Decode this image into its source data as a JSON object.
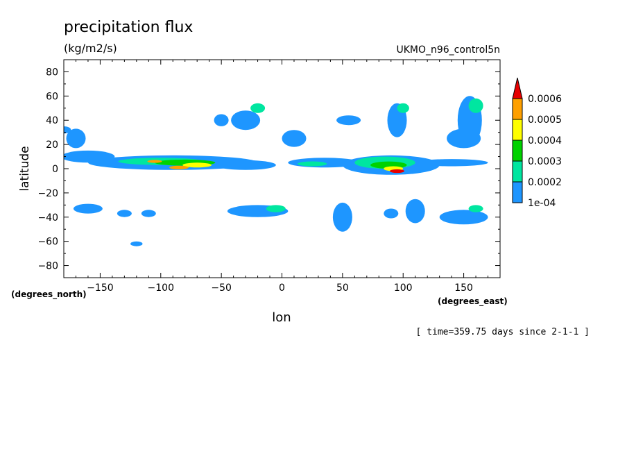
{
  "chart_data": {
    "type": "heatmap",
    "title": "precipitation flux",
    "units": "(kg/m2/s)",
    "dataset": "UKMO_n96_control5n",
    "xlabel": "lon",
    "ylabel": "latitude",
    "x_units_label": "(degrees_east)",
    "y_units_label": "(degrees_north)",
    "time_label": "[ time=359.75 days since 2-1-1 ]",
    "xlim": [
      -180,
      180
    ],
    "ylim": [
      -90,
      90
    ],
    "x_ticks": [
      -150,
      -100,
      -50,
      0,
      50,
      100,
      150
    ],
    "y_ticks": [
      80,
      60,
      40,
      20,
      0,
      -20,
      -40,
      -60,
      -80
    ],
    "grid": false,
    "legend_position": "right",
    "colorbar": {
      "levels": [
        0.0001,
        0.0002,
        0.0003,
        0.0004,
        0.0005,
        0.0006
      ],
      "labels": [
        "1e-04",
        "0.0002",
        "0.0003",
        "0.0004",
        "0.0005",
        "0.0006"
      ],
      "colors": [
        "#1e96ff",
        "#00e6a0",
        "#00d200",
        "#ffff00",
        "#ffa000",
        "#e60000"
      ]
    },
    "features": [
      {
        "lon": -160,
        "lat": 10,
        "level": 1,
        "sx": 22,
        "sy": 5
      },
      {
        "lon": -90,
        "lat": 5,
        "level": 1,
        "sx": 70,
        "sy": 6
      },
      {
        "lon": -100,
        "lat": 6,
        "level": 2,
        "sx": 35,
        "sy": 3
      },
      {
        "lon": -80,
        "lat": 5,
        "level": 3,
        "sx": 25,
        "sy": 2.5
      },
      {
        "lon": -70,
        "lat": 3,
        "level": 4,
        "sx": 12,
        "sy": 2
      },
      {
        "lon": -85,
        "lat": 1,
        "level": 5,
        "sx": 8,
        "sy": 1.5
      },
      {
        "lon": -105,
        "lat": 6,
        "level": 5,
        "sx": 6,
        "sy": 1.2
      },
      {
        "lon": -30,
        "lat": 3,
        "level": 1,
        "sx": 25,
        "sy": 4
      },
      {
        "lon": 35,
        "lat": 5,
        "level": 1,
        "sx": 30,
        "sy": 4
      },
      {
        "lon": 25,
        "lat": 4,
        "level": 2,
        "sx": 12,
        "sy": 2
      },
      {
        "lon": 90,
        "lat": 3,
        "level": 1,
        "sx": 40,
        "sy": 8
      },
      {
        "lon": 85,
        "lat": 5,
        "level": 2,
        "sx": 25,
        "sy": 5
      },
      {
        "lon": 88,
        "lat": 3,
        "level": 3,
        "sx": 15,
        "sy": 3
      },
      {
        "lon": 92,
        "lat": 0,
        "level": 4,
        "sx": 8,
        "sy": 2
      },
      {
        "lon": 95,
        "lat": -2,
        "level": 6,
        "sx": 6,
        "sy": 1.5
      },
      {
        "lon": 140,
        "lat": 5,
        "level": 1,
        "sx": 30,
        "sy": 3
      },
      {
        "lon": 155,
        "lat": 40,
        "level": 1,
        "sx": 10,
        "sy": 20
      },
      {
        "lon": 160,
        "lat": 52,
        "level": 2,
        "sx": 6,
        "sy": 6
      },
      {
        "lon": 150,
        "lat": 25,
        "level": 1,
        "sx": 14,
        "sy": 8
      },
      {
        "lon": 95,
        "lat": 40,
        "level": 1,
        "sx": 8,
        "sy": 14
      },
      {
        "lon": 100,
        "lat": 50,
        "level": 2,
        "sx": 5,
        "sy": 4
      },
      {
        "lon": 10,
        "lat": 25,
        "level": 1,
        "sx": 10,
        "sy": 7
      },
      {
        "lon": -30,
        "lat": 40,
        "level": 1,
        "sx": 12,
        "sy": 8
      },
      {
        "lon": -20,
        "lat": 50,
        "level": 2,
        "sx": 6,
        "sy": 4
      },
      {
        "lon": 55,
        "lat": 40,
        "level": 1,
        "sx": 10,
        "sy": 4
      },
      {
        "lon": -50,
        "lat": 40,
        "level": 1,
        "sx": 6,
        "sy": 5
      },
      {
        "lon": -170,
        "lat": 25,
        "level": 1,
        "sx": 8,
        "sy": 8
      },
      {
        "lon": -160,
        "lat": -33,
        "level": 1,
        "sx": 12,
        "sy": 4
      },
      {
        "lon": -20,
        "lat": -35,
        "level": 1,
        "sx": 25,
        "sy": 5
      },
      {
        "lon": -5,
        "lat": -33,
        "level": 2,
        "sx": 8,
        "sy": 3
      },
      {
        "lon": 50,
        "lat": -40,
        "level": 1,
        "sx": 8,
        "sy": 12
      },
      {
        "lon": 110,
        "lat": -35,
        "level": 1,
        "sx": 8,
        "sy": 10
      },
      {
        "lon": 150,
        "lat": -40,
        "level": 1,
        "sx": 20,
        "sy": 6
      },
      {
        "lon": 160,
        "lat": -33,
        "level": 2,
        "sx": 6,
        "sy": 3
      },
      {
        "lon": -130,
        "lat": -37,
        "level": 1,
        "sx": 6,
        "sy": 3
      },
      {
        "lon": -110,
        "lat": -37,
        "level": 1,
        "sx": 6,
        "sy": 3
      },
      {
        "lon": 90,
        "lat": -37,
        "level": 1,
        "sx": 6,
        "sy": 4
      },
      {
        "lon": -120,
        "lat": -62,
        "level": 1,
        "sx": 5,
        "sy": 2
      },
      {
        "lon": -180,
        "lat": 32,
        "level": 1,
        "sx": 6,
        "sy": 3
      }
    ]
  }
}
